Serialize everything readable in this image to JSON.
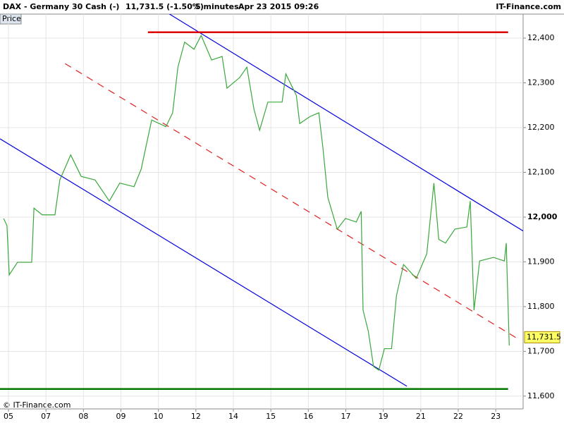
{
  "chart_data": {
    "type": "line",
    "title": "DAX - Germany 30 Cash (-)",
    "subtitle": "11,731.5 (-1.50%)",
    "interval": "5 minutes",
    "date": "Apr 23 2015 09:26",
    "brand": "IT-Finance.com",
    "copyright": "© IT-Finance.com",
    "y_label": "Price",
    "grid": true,
    "xlim": [
      -0.226,
      13.73
    ],
    "ylim": [
      11584,
      12430
    ],
    "xticks": [
      {
        "value": 0,
        "label": "05"
      },
      {
        "value": 1,
        "label": "07"
      },
      {
        "value": 2,
        "label": "08"
      },
      {
        "value": 3,
        "label": "09"
      },
      {
        "value": 4,
        "label": "10"
      },
      {
        "value": 5,
        "label": "12"
      },
      {
        "value": 6,
        "label": "14"
      },
      {
        "value": 7,
        "label": "15"
      },
      {
        "value": 8,
        "label": "16"
      },
      {
        "value": 9,
        "label": "17"
      },
      {
        "value": 10,
        "label": "19"
      },
      {
        "value": 11,
        "label": "21"
      },
      {
        "value": 12,
        "label": "22"
      },
      {
        "value": 13,
        "label": "23"
      }
    ],
    "yticks": [
      {
        "value": 11600,
        "label": "11,600"
      },
      {
        "value": 11700,
        "label": "11,700"
      },
      {
        "value": 11800,
        "label": "11,800"
      },
      {
        "value": 11900,
        "label": "11,900"
      },
      {
        "value": 12000,
        "label": "12,000"
      },
      {
        "value": 12100,
        "label": "12,100"
      },
      {
        "value": 12200,
        "label": "12,200"
      },
      {
        "value": 12300,
        "label": "12,300"
      },
      {
        "value": 12400,
        "label": "12,400"
      }
    ],
    "last": {
      "value": 11731.5,
      "label": "11,731.5"
    },
    "series": [
      {
        "name": "DAX",
        "color": "#3aa83a",
        "x": [
          -0.13,
          -0.04,
          0.02,
          0.24,
          0.62,
          0.68,
          0.9,
          1.24,
          1.37,
          1.66,
          1.94,
          2.31,
          2.69,
          2.97,
          3.35,
          3.54,
          3.82,
          4.2,
          4.38,
          4.52,
          4.7,
          4.95,
          5.14,
          5.42,
          5.7,
          5.83,
          6.17,
          6.36,
          6.55,
          6.7,
          6.92,
          7.3,
          7.4,
          7.68,
          7.77,
          8.05,
          8.28,
          8.39,
          8.52,
          8.77,
          8.99,
          9.28,
          9.41,
          9.46,
          9.6,
          9.74,
          9.88,
          10.03,
          10.22,
          10.35,
          10.54,
          10.88,
          11.16,
          11.35,
          11.48,
          11.66,
          11.91,
          12.23,
          12.32,
          12.42,
          12.57,
          12.94,
          13.23,
          13.28,
          13.36
        ],
        "values": [
          11997,
          11981,
          11871,
          11899,
          11899,
          12020,
          12005,
          12005,
          12083,
          12139,
          12091,
          12083,
          12036,
          12076,
          12068,
          12107,
          12217,
          12202,
          12233,
          12335,
          12391,
          12375,
          12406,
          12351,
          12359,
          12288,
          12312,
          12335,
          12241,
          12194,
          12257,
          12257,
          12320,
          12272,
          12209,
          12225,
          12233,
          12154,
          12044,
          11973,
          11997,
          11989,
          12013,
          11792,
          11745,
          11666,
          11658,
          11706,
          11706,
          11824,
          11894,
          11863,
          11918,
          12076,
          11950,
          11942,
          11973,
          11978,
          12036,
          11792,
          11902,
          11910,
          11902,
          11942,
          11713
        ]
      }
    ],
    "trendlines": [
      {
        "color": "#0000dd",
        "dash": false,
        "x": [
          4.29,
          13.73
        ],
        "y": [
          12454,
          11969
        ]
      },
      {
        "color": "#0000dd",
        "dash": false,
        "x": [
          -0.226,
          10.63
        ],
        "y": [
          12175,
          11622
        ]
      },
      {
        "color": "#e02020",
        "dash": true,
        "x": [
          1.51,
          13.57
        ],
        "y": [
          12343,
          11729
        ]
      },
      {
        "color": "#dd0000",
        "dash": false,
        "x": [
          3.72,
          13.33
        ],
        "y": [
          12413,
          12413
        ]
      },
      {
        "color": "#007700",
        "dash": false,
        "x": [
          -0.226,
          13.33
        ],
        "y": [
          11616,
          11616
        ]
      }
    ]
  }
}
